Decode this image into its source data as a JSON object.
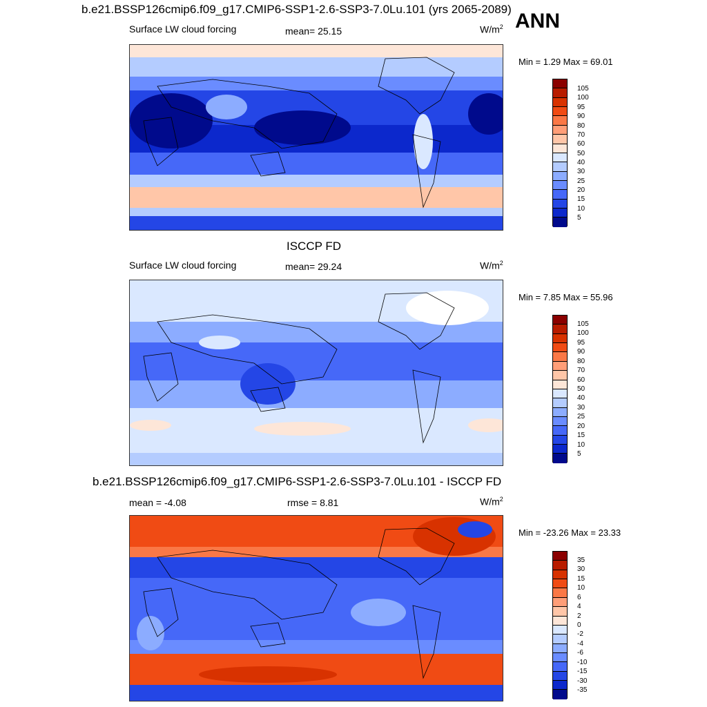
{
  "panels": [
    {
      "title": "b.e21.BSSP126cmip6.f09_g17.CMIP6-SSP1-2.6-SSP3-7.0Lu.101 (yrs 2065-2089)",
      "left_label": "Surface LW cloud forcing",
      "center_label": "mean=  25.15",
      "unit": "W/m",
      "unit_sup": "2",
      "minmax": "Min =   1.29 Max =  69.01"
    },
    {
      "title": "ISCCP FD",
      "left_label": "Surface LW cloud forcing",
      "center_label": "mean=  29.24",
      "unit": "W/m",
      "unit_sup": "2",
      "minmax": "Min =   7.85 Max =  55.96"
    },
    {
      "title": "b.e21.BSSP126cmip6.f09_g17.CMIP6-SSP1-2.6-SSP3-7.0Lu.101 - ISCCP FD",
      "left_label": "mean =  -4.08",
      "center_label": "rmse =   8.81",
      "unit": "W/m",
      "unit_sup": "2",
      "minmax": "Min = -23.26 Max =  23.33"
    }
  ],
  "season": "ANN",
  "colorbar_abs": {
    "labels": [
      "105",
      "100",
      "95",
      "90",
      "80",
      "70",
      "60",
      "50",
      "40",
      "30",
      "25",
      "20",
      "15",
      "10",
      "5"
    ],
    "colors": [
      "#8b0000",
      "#b81c00",
      "#d83200",
      "#f04b14",
      "#fa7846",
      "#ff9e78",
      "#ffc6a8",
      "#fde6d8",
      "#dae8ff",
      "#b4ccff",
      "#8cacff",
      "#6a8cff",
      "#4668f8",
      "#2446e6",
      "#0c28cc",
      "#000a8c"
    ]
  },
  "colorbar_diff": {
    "labels": [
      "35",
      "30",
      "15",
      "10",
      "6",
      "4",
      "2",
      "0",
      "-2",
      "-4",
      "-6",
      "-10",
      "-15",
      "-30",
      "-35"
    ],
    "colors": [
      "#8b0000",
      "#b81c00",
      "#d83200",
      "#f04b14",
      "#fa7846",
      "#ff9e78",
      "#ffc6a8",
      "#fde6d8",
      "#dae8ff",
      "#b4ccff",
      "#8cacff",
      "#6a8cff",
      "#4668f8",
      "#2446e6",
      "#0c28cc",
      "#000a8c"
    ]
  }
}
